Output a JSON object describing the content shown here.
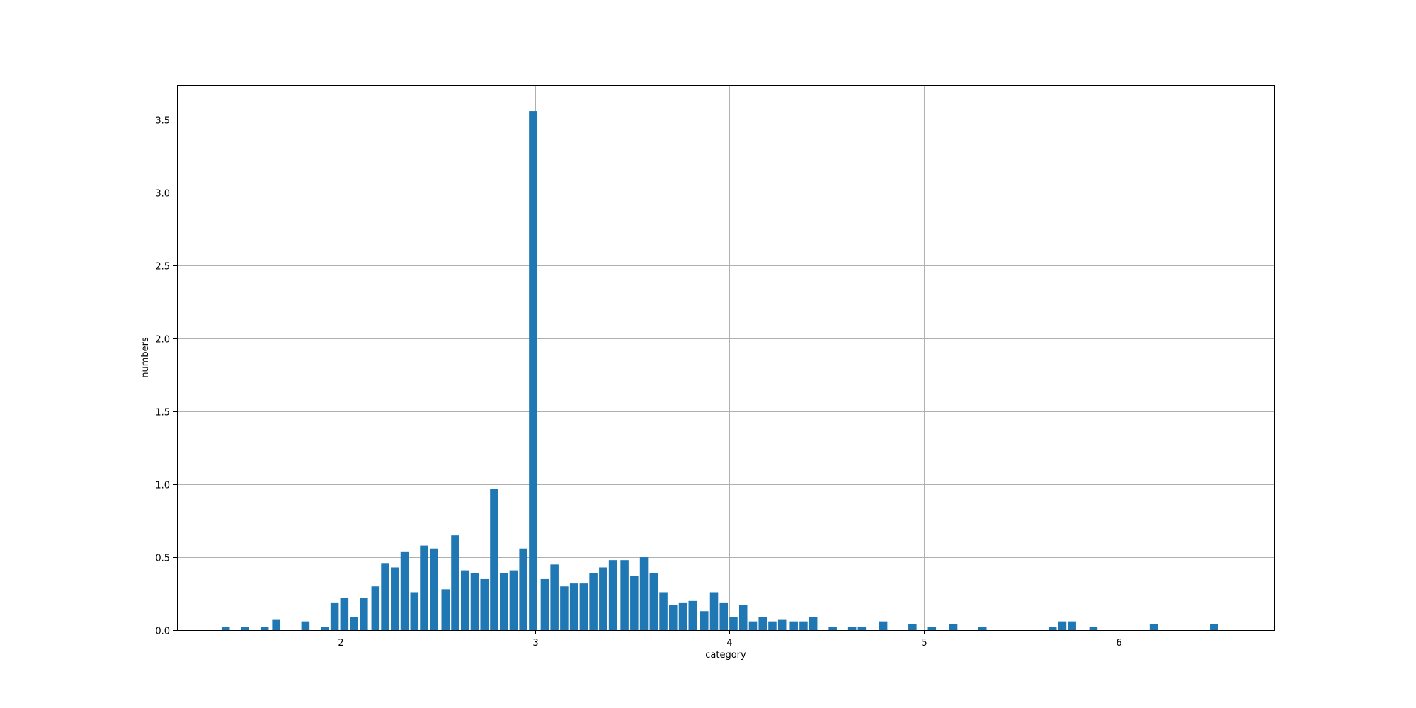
{
  "chart_data": {
    "type": "bar",
    "title": "",
    "xlabel": "category",
    "ylabel": "numbers",
    "xlim": [
      1.16,
      6.8
    ],
    "ylim": [
      0,
      3.74
    ],
    "xticks": [
      2,
      3,
      4,
      5,
      6
    ],
    "yticks": [
      0,
      0.5,
      1,
      1.5,
      2,
      2.5,
      3,
      3.5
    ],
    "xtick_labels": [
      "2",
      "3",
      "4",
      "5",
      "6"
    ],
    "ytick_labels": [
      "0.0",
      "0.5",
      "1.0",
      "1.5",
      "2.0",
      "2.5",
      "3.0",
      "3.5"
    ],
    "grid": true,
    "bar_width": 0.042,
    "bar_color": "#1f77b4",
    "x": [
      1.41,
      1.51,
      1.61,
      1.67,
      1.82,
      1.92,
      1.97,
      2.02,
      2.07,
      2.12,
      2.18,
      2.23,
      2.28,
      2.33,
      2.38,
      2.43,
      2.48,
      2.54,
      2.59,
      2.64,
      2.69,
      2.74,
      2.79,
      2.84,
      2.89,
      2.94,
      2.99,
      3.05,
      3.1,
      3.15,
      3.2,
      3.25,
      3.3,
      3.35,
      3.4,
      3.46,
      3.51,
      3.56,
      3.61,
      3.66,
      3.71,
      3.76,
      3.81,
      3.87,
      3.92,
      3.97,
      4.02,
      4.07,
      4.12,
      4.17,
      4.22,
      4.27,
      4.33,
      4.38,
      4.43,
      4.53,
      4.63,
      4.68,
      4.79,
      4.94,
      5.04,
      5.15,
      5.3,
      5.66,
      5.71,
      5.76,
      5.87,
      6.18,
      6.49
    ],
    "values": [
      0.02,
      0.02,
      0.02,
      0.07,
      0.06,
      0.02,
      0.19,
      0.22,
      0.09,
      0.22,
      0.3,
      0.46,
      0.43,
      0.54,
      0.26,
      0.58,
      0.56,
      0.28,
      0.65,
      0.41,
      0.39,
      0.35,
      0.97,
      0.39,
      0.41,
      0.56,
      3.56,
      0.35,
      0.45,
      0.3,
      0.32,
      0.32,
      0.39,
      0.43,
      0.48,
      0.48,
      0.37,
      0.5,
      0.39,
      0.26,
      0.17,
      0.19,
      0.2,
      0.13,
      0.26,
      0.19,
      0.09,
      0.17,
      0.06,
      0.09,
      0.06,
      0.07,
      0.06,
      0.06,
      0.09,
      0.02,
      0.02,
      0.02,
      0.06,
      0.04,
      0.02,
      0.04,
      0.02,
      0.02,
      0.06,
      0.06,
      0.02,
      0.04,
      0.04
    ]
  }
}
